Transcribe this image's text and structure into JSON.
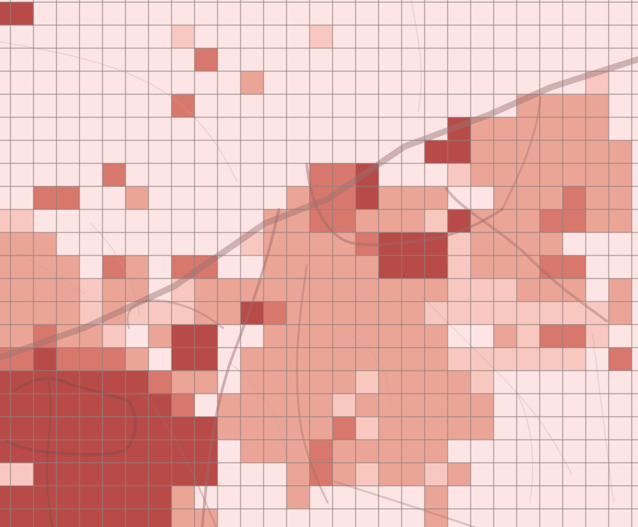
{
  "map": {
    "type": "choropleth-grid",
    "grid": {
      "cols": 28,
      "rows": 23
    },
    "palette": [
      "#fde5e5",
      "#f8c8c0",
      "#eba596",
      "#d8786c",
      "#b84b47"
    ],
    "road_color": "#9a6a6a",
    "rows": [
      "4000000000000000000000000000",
      "0000000100000100000000000000",
      "0000000030000000000000000000",
      "0000000000200000000000000100",
      "0000000300000000000000222200",
      "0000000000000000000422222200",
      "0000000000000000004422222220",
      "0000300000000334000122222220",
      "0330020000002334222002223220",
      "1000000000022332221422233220",
      "2200000000122223444122220000",
      "2220320330022222444122233000",
      "2221220122222222222111222020",
      "2221211122432222221111111120",
      "2322102440022222222002133100",
      "3433320440222222222111111030",
      "4444443220222221222210000000",
      "4444444302222212222220000000",
      "4444444442222231222220000000",
      "4444444440222322222000000000",
      "1444444440002321221200000000",
      "4444444200002000002000000000",
      "4444444220000000002000000000"
    ]
  }
}
